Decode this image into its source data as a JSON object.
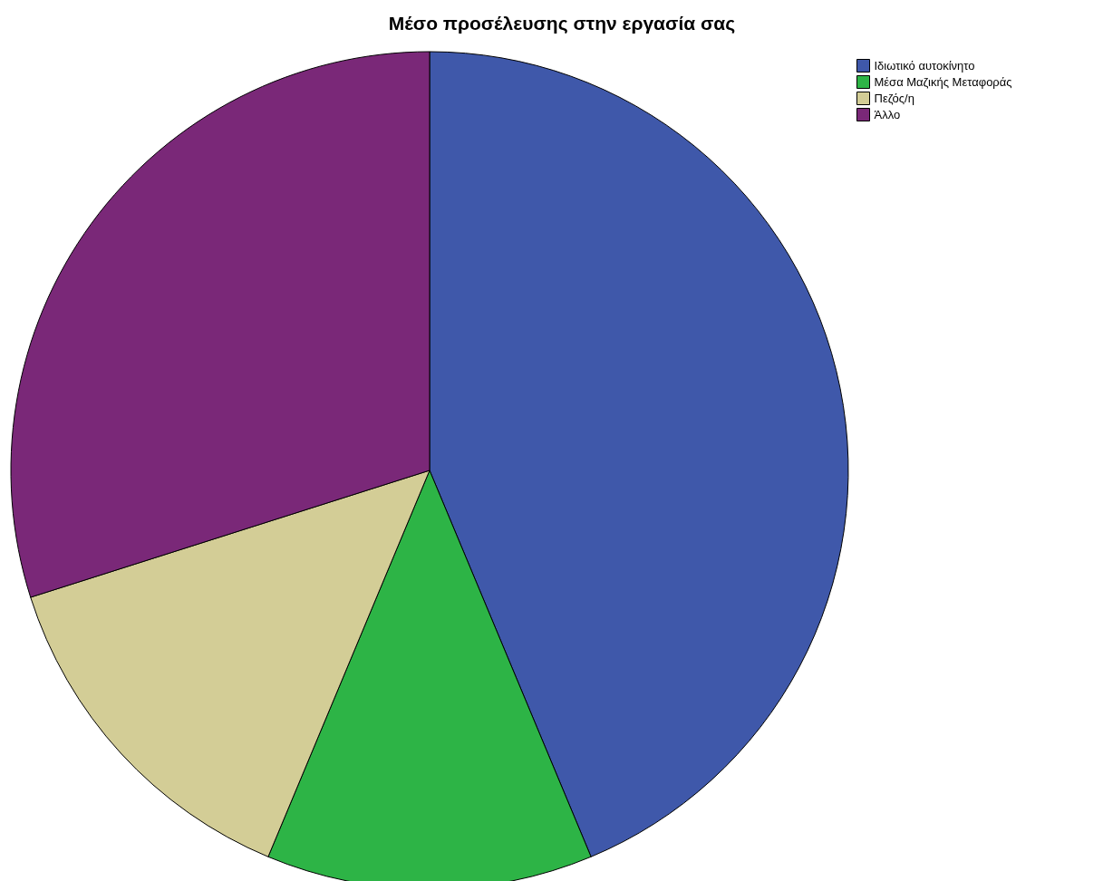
{
  "chart_data": {
    "type": "pie",
    "title": "Μέσο προσέλευσης στην εργασία σας",
    "categories": [
      "Ιδιωτικό αυτοκίνητο",
      "Μέσα Μαζικής Μεταφοράς",
      "Πεζός/η",
      "Άλλο"
    ],
    "values": [
      43.7,
      12.6,
      13.8,
      29.9
    ],
    "colors": [
      "#3f58aa",
      "#2db446",
      "#d3cd96",
      "#7a2878"
    ],
    "legend": "top right"
  }
}
